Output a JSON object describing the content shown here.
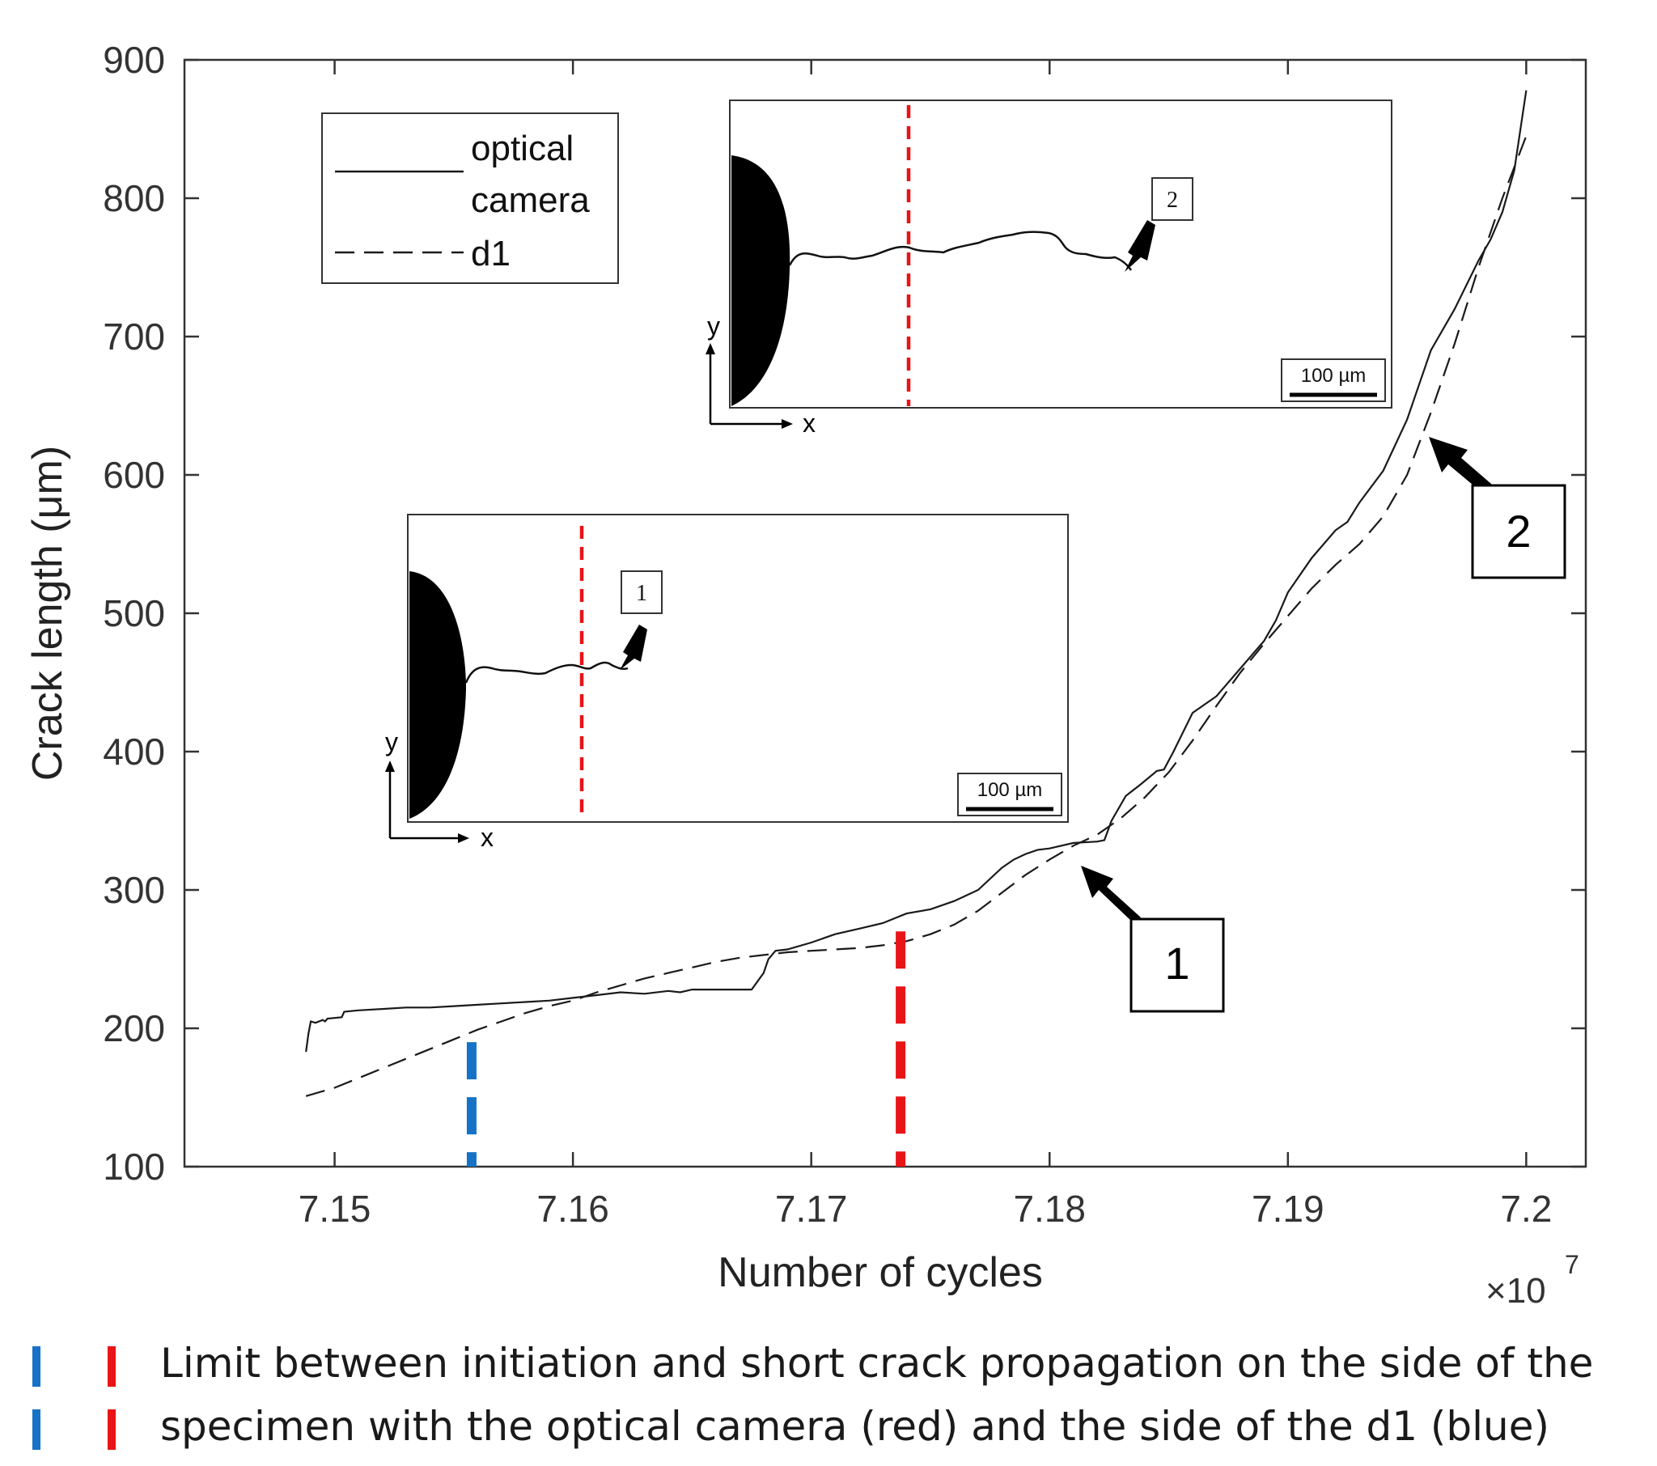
{
  "chart_data": {
    "type": "line",
    "xlabel": "Number of cycles",
    "x_multiplier": "×10",
    "x_multiplier_exp": "7",
    "ylabel": "Crack length  (μm)",
    "xlim": [
      7.1437,
      7.2025
    ],
    "ylim": [
      100,
      900
    ],
    "xticks": [
      "7.15",
      "7.16",
      "7.17",
      "7.18",
      "7.19",
      "7.2"
    ],
    "xtick_values": [
      7.15,
      7.16,
      7.17,
      7.18,
      7.19,
      7.2
    ],
    "yticks": [
      "100",
      "200",
      "300",
      "400",
      "500",
      "600",
      "700",
      "800",
      "900"
    ],
    "ytick_values": [
      100,
      200,
      300,
      400,
      500,
      600,
      700,
      800,
      900
    ],
    "grid": false,
    "legend": {
      "position": "top-left",
      "entries": [
        {
          "label_line1": "optical",
          "label_line2": "camera",
          "style": "solid"
        },
        {
          "label_line1": "d1",
          "style": "dashed"
        }
      ]
    },
    "series": [
      {
        "name": "optical camera",
        "style": "solid",
        "x": [
          7.1488,
          7.1489,
          7.149,
          7.1492,
          7.1495,
          7.1496,
          7.1497,
          7.1503,
          7.1504,
          7.151,
          7.152,
          7.153,
          7.154,
          7.155,
          7.156,
          7.157,
          7.158,
          7.159,
          7.16,
          7.161,
          7.162,
          7.163,
          7.164,
          7.1645,
          7.165,
          7.166,
          7.167,
          7.1675,
          7.168,
          7.1682,
          7.1685,
          7.169,
          7.17,
          7.171,
          7.172,
          7.173,
          7.174,
          7.175,
          7.176,
          7.177,
          7.178,
          7.1785,
          7.179,
          7.1795,
          7.18,
          7.181,
          7.182,
          7.1823,
          7.1826,
          7.1832,
          7.1838,
          7.1845,
          7.1848,
          7.1852,
          7.186,
          7.187,
          7.188,
          7.189,
          7.1895,
          7.19,
          7.191,
          7.192,
          7.1925,
          7.193,
          7.194,
          7.195,
          7.1955,
          7.196,
          7.197,
          7.198,
          7.1985,
          7.199,
          7.1995,
          7.2
        ],
        "y": [
          183,
          196,
          205,
          204,
          206,
          205,
          207,
          208,
          212,
          213,
          214,
          215,
          215,
          216,
          217,
          218,
          219,
          220,
          222,
          224,
          226,
          225,
          227,
          226,
          228,
          228,
          228,
          228,
          240,
          250,
          256,
          257,
          262,
          268,
          272,
          276,
          283,
          286,
          292,
          300,
          316,
          322,
          326,
          329,
          330,
          334,
          335,
          336,
          350,
          368,
          376,
          386,
          387,
          400,
          428,
          440,
          460,
          480,
          495,
          515,
          540,
          560,
          566,
          580,
          603,
          640,
          665,
          690,
          720,
          755,
          770,
          790,
          820,
          878
        ]
      },
      {
        "name": "d1",
        "style": "dashed",
        "x": [
          7.1488,
          7.15,
          7.151,
          7.152,
          7.153,
          7.154,
          7.155,
          7.156,
          7.157,
          7.158,
          7.159,
          7.16,
          7.161,
          7.162,
          7.163,
          7.164,
          7.165,
          7.166,
          7.167,
          7.168,
          7.169,
          7.17,
          7.171,
          7.172,
          7.173,
          7.174,
          7.175,
          7.176,
          7.177,
          7.178,
          7.179,
          7.18,
          7.181,
          7.182,
          7.183,
          7.184,
          7.185,
          7.186,
          7.187,
          7.188,
          7.189,
          7.19,
          7.191,
          7.192,
          7.193,
          7.194,
          7.195,
          7.196,
          7.197,
          7.198,
          7.199,
          7.2
        ],
        "y": [
          151,
          157,
          164,
          171,
          178,
          185,
          192,
          199,
          205,
          211,
          216,
          220,
          226,
          231,
          236,
          240,
          244,
          248,
          251,
          253,
          255,
          256,
          257,
          258,
          260,
          263,
          268,
          275,
          285,
          298,
          311,
          322,
          332,
          340,
          352,
          367,
          385,
          408,
          433,
          457,
          478,
          498,
          518,
          535,
          550,
          570,
          600,
          645,
          695,
          750,
          800,
          845
        ]
      }
    ],
    "limit_markers": [
      {
        "name": "optical camera limit",
        "color": "#e81416",
        "x": 7.17375,
        "y_from": 100,
        "y_to": 270
      },
      {
        "name": "d1 limit",
        "color": "#1672c6",
        "x": 7.15575,
        "y_from": 100,
        "y_to": 190
      }
    ],
    "callouts": [
      {
        "label": "1",
        "target_x": 7.1809,
        "target_y": 318
      },
      {
        "label": "2",
        "target_x": 7.1958,
        "target_y": 630
      }
    ],
    "insets": [
      {
        "id": "inset1",
        "label": "1",
        "scale_bar": "100 µm",
        "axis_x": "x",
        "axis_y": "y"
      },
      {
        "id": "inset2",
        "label": "2",
        "scale_bar": "100 µm",
        "axis_x": "x",
        "axis_y": "y"
      }
    ],
    "colors": {
      "axis": "#333333",
      "line": "#1a1a1a",
      "red": "#e81416",
      "blue": "#1672c6"
    }
  },
  "caption": {
    "line1": "Limit between initiation and short crack propagation on the side of the",
    "line2": "specimen with the optical camera (red) and the side of the d1 (blue)"
  }
}
